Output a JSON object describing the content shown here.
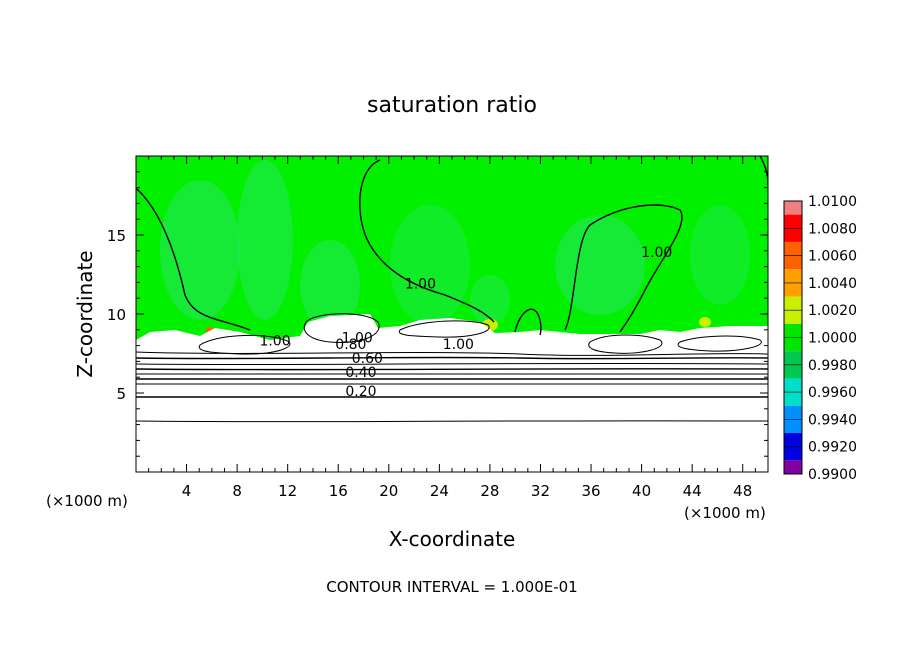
{
  "chart_data": {
    "type": "contour",
    "title": "saturation ratio",
    "xlabel": "X-coordinate",
    "ylabel": "Z-coordinate",
    "x_unit_left": "(×1000 m)",
    "x_unit_right": "(×1000 m)",
    "xlim": [
      0,
      50
    ],
    "ylim": [
      0,
      20
    ],
    "x_ticks": [
      "4",
      "8",
      "12",
      "16",
      "20",
      "24",
      "28",
      "32",
      "36",
      "40",
      "44",
      "48"
    ],
    "y_ticks": [
      "5",
      "10",
      "15"
    ],
    "footer": "CONTOUR INTERVAL = 1.000E-01",
    "colorbar": {
      "labels": [
        "1.0100",
        "1.0080",
        "1.0060",
        "1.0040",
        "1.0020",
        "1.0000",
        "0.9980",
        "0.9960",
        "0.9940",
        "0.9920",
        "0.9900"
      ],
      "colors": [
        "#f08080",
        "#ff0000",
        "#ff6000",
        "#ffa000",
        "#c8f000",
        "#00e600",
        "#00c850",
        "#00e0c8",
        "#0090ff",
        "#0000e0",
        "#8000a0"
      ]
    },
    "contour_labels": [
      {
        "text": "1.00",
        "x": 17.5,
        "y": 8.2
      },
      {
        "text": "0.80",
        "x": 17.0,
        "y": 7.8
      },
      {
        "text": "0.60",
        "x": 18.3,
        "y": 6.9
      },
      {
        "text": "0.40",
        "x": 17.8,
        "y": 6.0
      },
      {
        "text": "0.20",
        "x": 17.8,
        "y": 4.8
      },
      {
        "text": "1.00",
        "x": 22.5,
        "y": 11.6
      },
      {
        "text": "1.00",
        "x": 25.5,
        "y": 7.8
      },
      {
        "text": "1.00",
        "x": 41.2,
        "y": 13.6
      },
      {
        "text": "1.00",
        "x": 11.0,
        "y": 8.0
      }
    ],
    "background_value": 1.0,
    "colors": {
      "field_main": "#00f000",
      "field_light": "#2ee67a",
      "below_min": "#ffffff"
    }
  }
}
